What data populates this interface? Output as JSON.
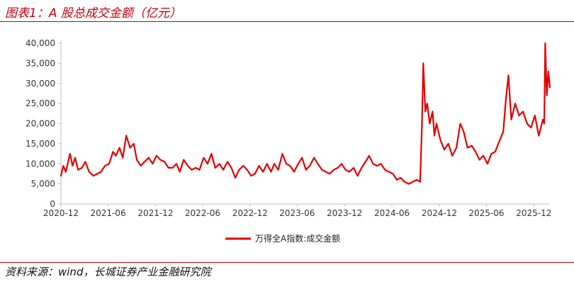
{
  "figure": {
    "title": "图表1：A 股总成交金额（亿元）",
    "source": "资料来源：wind，长城证券产业金融研究院"
  },
  "colors": {
    "accent": "#c0000b",
    "series": "#e10000",
    "axis": "#bfbfbf"
  },
  "chart_data": {
    "type": "line",
    "title": "",
    "xlabel": "",
    "ylabel": "",
    "ylim": [
      0,
      40000
    ],
    "y_ticks": [
      "0",
      "5,000",
      "10,000",
      "15,000",
      "20,000",
      "25,000",
      "30,000",
      "35,000",
      "40,000"
    ],
    "x_ticks": [
      "2020-12",
      "2021-06",
      "2021-12",
      "2022-06",
      "2022-12",
      "2023-06",
      "2023-12",
      "2024-06",
      "2024-12",
      "2025-06",
      "2025-12"
    ],
    "grid": false,
    "legend_position": "bottom-center",
    "series": [
      {
        "name": "万得全A指数:成交金额",
        "x": [
          "2020-12-01",
          "2020-12-10",
          "2020-12-20",
          "2021-01-05",
          "2021-01-15",
          "2021-01-25",
          "2021-02-05",
          "2021-02-20",
          "2021-03-05",
          "2021-03-20",
          "2021-04-05",
          "2021-04-20",
          "2021-05-05",
          "2021-05-20",
          "2021-06-05",
          "2021-06-20",
          "2021-07-01",
          "2021-07-15",
          "2021-07-28",
          "2021-08-10",
          "2021-08-25",
          "2021-09-08",
          "2021-09-20",
          "2021-10-05",
          "2021-10-20",
          "2021-11-05",
          "2021-11-20",
          "2021-12-05",
          "2021-12-20",
          "2022-01-05",
          "2022-01-20",
          "2022-02-05",
          "2022-02-20",
          "2022-03-05",
          "2022-03-20",
          "2022-04-05",
          "2022-04-20",
          "2022-05-05",
          "2022-05-20",
          "2022-06-05",
          "2022-06-20",
          "2022-07-05",
          "2022-07-20",
          "2022-08-05",
          "2022-08-20",
          "2022-09-05",
          "2022-09-20",
          "2022-10-05",
          "2022-10-20",
          "2022-11-05",
          "2022-11-20",
          "2022-12-05",
          "2022-12-20",
          "2023-01-05",
          "2023-01-20",
          "2023-02-05",
          "2023-02-20",
          "2023-03-05",
          "2023-03-20",
          "2023-04-05",
          "2023-04-20",
          "2023-05-05",
          "2023-05-20",
          "2023-06-05",
          "2023-06-20",
          "2023-07-05",
          "2023-07-20",
          "2023-08-05",
          "2023-08-20",
          "2023-09-05",
          "2023-09-20",
          "2023-10-05",
          "2023-10-20",
          "2023-11-05",
          "2023-11-20",
          "2023-12-05",
          "2023-12-20",
          "2024-01-05",
          "2024-01-20",
          "2024-02-05",
          "2024-02-20",
          "2024-03-05",
          "2024-03-20",
          "2024-04-05",
          "2024-04-20",
          "2024-05-05",
          "2024-05-20",
          "2024-06-05",
          "2024-06-20",
          "2024-07-05",
          "2024-07-20",
          "2024-08-05",
          "2024-08-20",
          "2024-09-05",
          "2024-09-18",
          "2024-09-25",
          "2024-09-30",
          "2024-10-08",
          "2024-10-15",
          "2024-10-25",
          "2024-11-05",
          "2024-11-12",
          "2024-11-20",
          "2024-12-05",
          "2024-12-20",
          "2025-01-05",
          "2025-01-20",
          "2025-02-05",
          "2025-02-20",
          "2025-03-05",
          "2025-03-20",
          "2025-04-05",
          "2025-04-20",
          "2025-05-05",
          "2025-05-20",
          "2025-06-05",
          "2025-06-20",
          "2025-07-05",
          "2025-07-20",
          "2025-08-05",
          "2025-08-15",
          "2025-08-25",
          "2025-09-05",
          "2025-09-20",
          "2025-10-05",
          "2025-10-20",
          "2025-11-05",
          "2025-11-20",
          "2025-12-05",
          "2025-12-20",
          "2026-01-05",
          "2026-01-10",
          "2026-01-14",
          "2026-01-20",
          "2026-01-26",
          "2026-02-01"
        ],
        "values": [
          7000,
          9500,
          8000,
          12500,
          9500,
          11500,
          8500,
          9000,
          10500,
          8000,
          7000,
          7500,
          8000,
          9500,
          10000,
          13000,
          12000,
          14000,
          11500,
          17000,
          14000,
          15000,
          11000,
          9500,
          10500,
          11500,
          10000,
          12000,
          11000,
          10500,
          9000,
          9000,
          10000,
          8000,
          11000,
          9500,
          8500,
          9000,
          8500,
          11500,
          10000,
          12500,
          9000,
          10000,
          8500,
          10500,
          9000,
          6500,
          8500,
          9500,
          8500,
          7000,
          7500,
          9500,
          8000,
          10000,
          8000,
          10000,
          8500,
          12500,
          10000,
          9500,
          8000,
          10000,
          11500,
          8500,
          9500,
          11500,
          10000,
          8500,
          8000,
          7500,
          8500,
          9000,
          10000,
          8500,
          8000,
          9000,
          7000,
          9000,
          10500,
          12000,
          10000,
          9500,
          10000,
          8500,
          8000,
          7500,
          6000,
          6500,
          5500,
          5000,
          5500,
          6000,
          5500,
          20000,
          35000,
          23000,
          25000,
          20000,
          23000,
          17000,
          20000,
          16000,
          13500,
          15000,
          12000,
          14000,
          20000,
          18000,
          14000,
          14500,
          13000,
          11000,
          12000,
          10000,
          12500,
          13000,
          15500,
          18000,
          26000,
          32000,
          21000,
          25000,
          22000,
          23000,
          20000,
          19000,
          22000,
          17000,
          21000,
          20000,
          40000,
          27000,
          33000,
          29000
        ]
      }
    ]
  }
}
